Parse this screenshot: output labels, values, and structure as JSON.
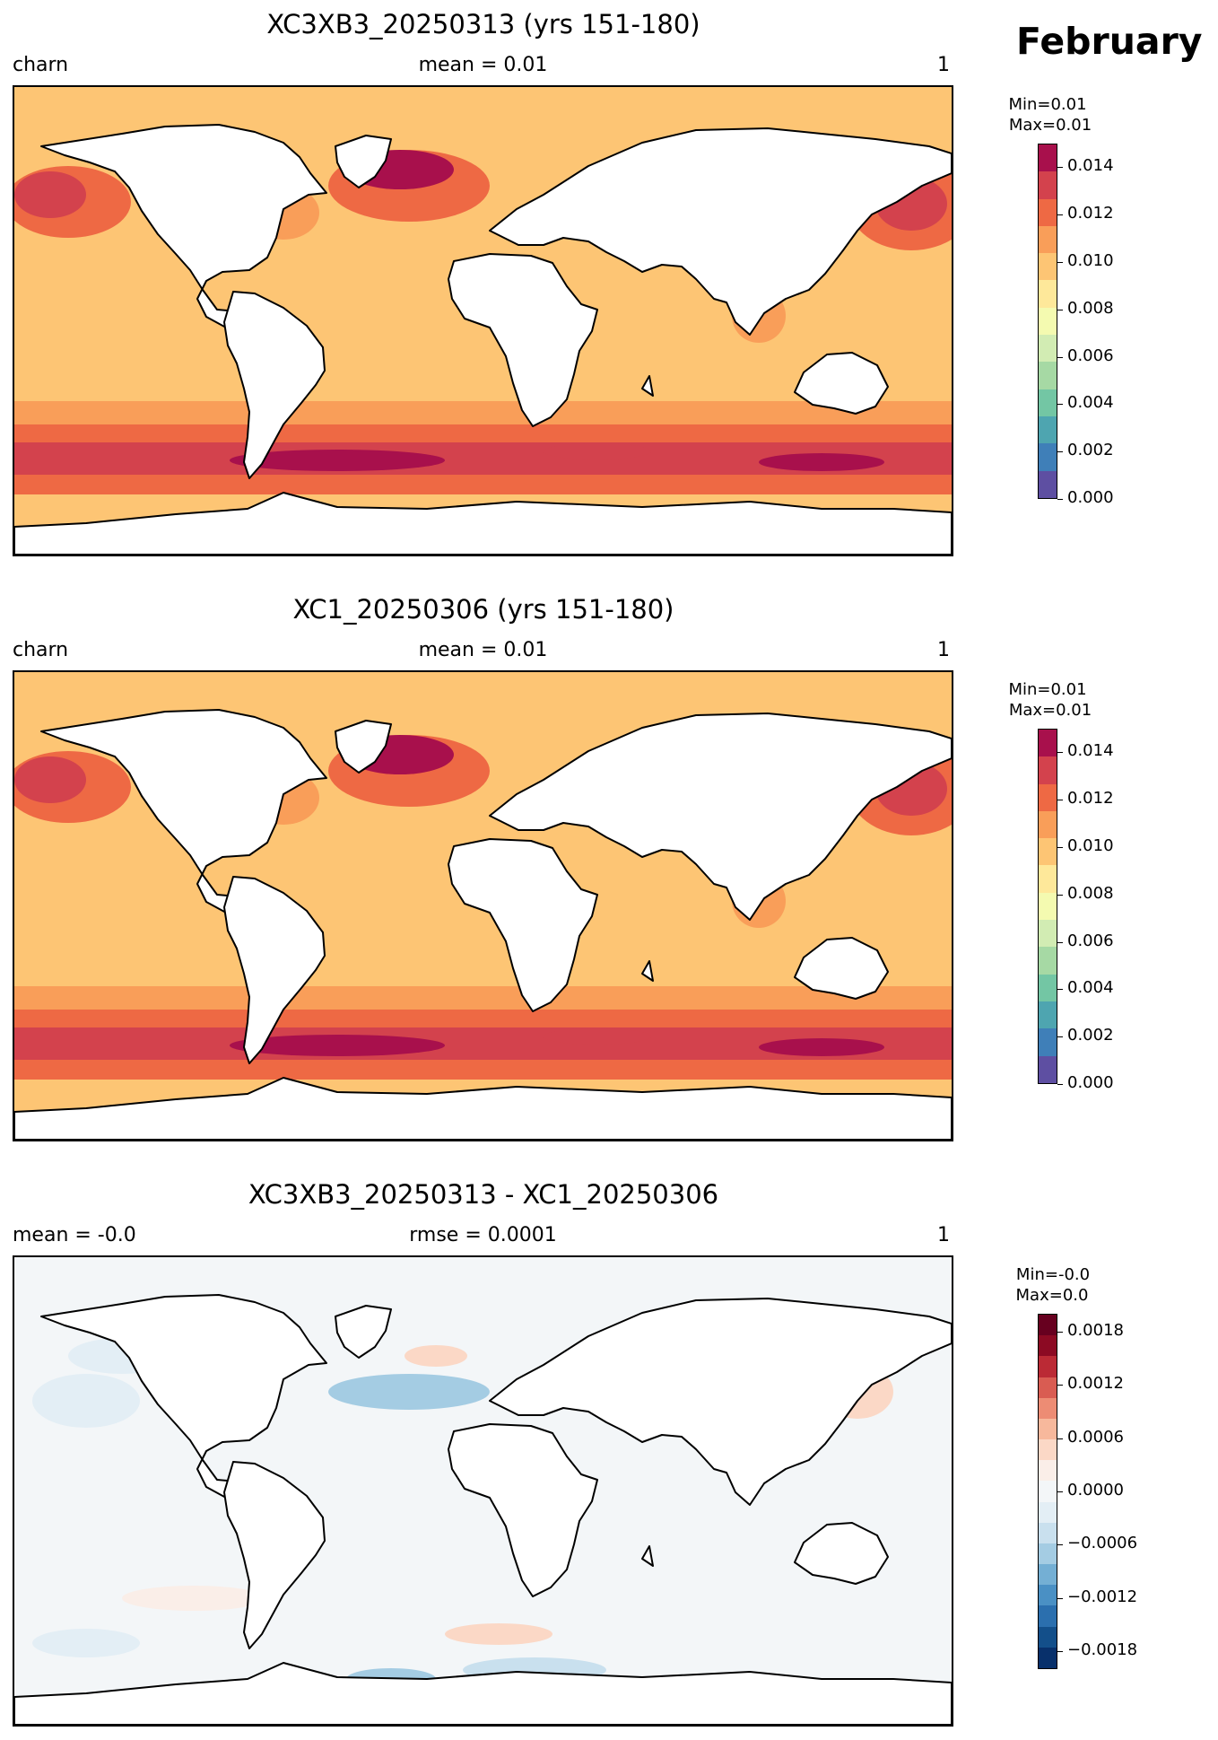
{
  "month": "February",
  "panels": [
    {
      "title": "XC3XB3_20250313 (yrs 151-180)",
      "left": "charn",
      "center": "mean = 0.01",
      "right": "1",
      "minmax_line1": "Min=0.01",
      "minmax_line2": "Max=0.01",
      "colorbar": {
        "cmap": "Spectral_r",
        "colors": [
          "#5e4fa2",
          "#3f7fb8",
          "#4ea5b0",
          "#73c6a4",
          "#a6d9a4",
          "#d2ecb3",
          "#f4fab0",
          "#fee89a",
          "#fdc574",
          "#f99e59",
          "#ee6944",
          "#d3424d",
          "#a8104c"
        ],
        "ticks": [
          "0.000",
          "0.002",
          "0.004",
          "0.006",
          "0.008",
          "0.010",
          "0.012",
          "0.014"
        ],
        "vmin": 0.0,
        "vmax": 0.015
      }
    },
    {
      "title": "XC1_20250306 (yrs 151-180)",
      "left": "charn",
      "center": "mean = 0.01",
      "right": "1",
      "minmax_line1": "Min=0.01",
      "minmax_line2": "Max=0.01",
      "colorbar": {
        "cmap": "Spectral_r",
        "colors": [
          "#5e4fa2",
          "#3f7fb8",
          "#4ea5b0",
          "#73c6a4",
          "#a6d9a4",
          "#d2ecb3",
          "#f4fab0",
          "#fee89a",
          "#fdc574",
          "#f99e59",
          "#ee6944",
          "#d3424d",
          "#a8104c"
        ],
        "ticks": [
          "0.000",
          "0.002",
          "0.004",
          "0.006",
          "0.008",
          "0.010",
          "0.012",
          "0.014"
        ],
        "vmin": 0.0,
        "vmax": 0.015
      }
    },
    {
      "title": "XC3XB3_20250313 - XC1_20250306",
      "left": "mean = -0.0",
      "center": "rmse = 0.0001",
      "right": "1",
      "minmax_line1": "Min=-0.0",
      "minmax_line2": "Max=0.0",
      "colorbar": {
        "cmap": "RdBu_r",
        "colors": [
          "#08306b",
          "#134f8a",
          "#2b6fae",
          "#4a90c4",
          "#74afd4",
          "#a4cce3",
          "#c9e0ee",
          "#e3eef5",
          "#f3f6f8",
          "#faeee8",
          "#fbd8c6",
          "#f7b89c",
          "#ed8c74",
          "#d95c52",
          "#bb2a35",
          "#8c0a23",
          "#67001f"
        ],
        "ticks": [
          "−0.0018",
          "−0.0012",
          "−0.0006",
          "0.0000",
          "0.0006",
          "0.0012",
          "0.0018"
        ],
        "vmin": -0.002,
        "vmax": 0.002
      }
    }
  ]
}
